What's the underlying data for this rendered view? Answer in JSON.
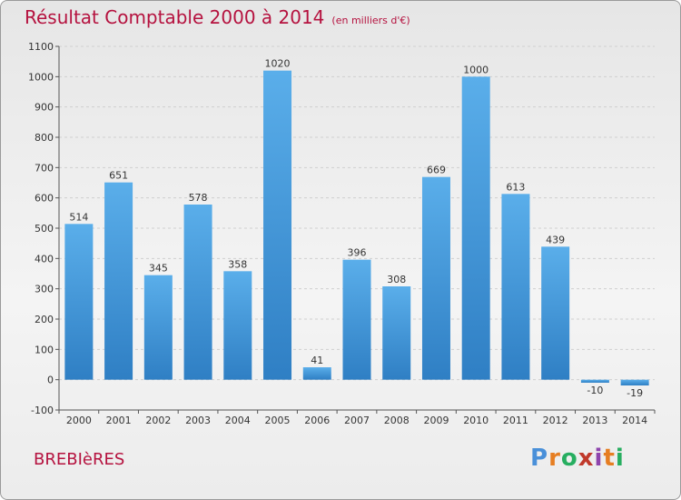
{
  "title": "Résultat Comptable 2000 à 2014",
  "subtitle": "(en milliers d'€)",
  "commune": "BREBIèRES",
  "brand": {
    "letters": [
      "P",
      "r",
      "o",
      "x",
      "i",
      "t",
      "i"
    ]
  },
  "colors": {
    "bar": "#3d8fd6",
    "title": "#b5123f"
  },
  "chart_data": {
    "type": "bar",
    "title": "Résultat Comptable 2000 à 2014",
    "subtitle": "(en milliers d'€)",
    "categories": [
      "2000",
      "2001",
      "2002",
      "2003",
      "2004",
      "2005",
      "2006",
      "2007",
      "2008",
      "2009",
      "2010",
      "2011",
      "2012",
      "2013",
      "2014"
    ],
    "values": [
      514,
      651,
      345,
      578,
      358,
      1020,
      41,
      396,
      308,
      669,
      1000,
      613,
      439,
      -10,
      -19
    ],
    "value_labels": [
      "514",
      "651",
      "345",
      "578",
      "358",
      "1020",
      "41",
      "396",
      "308",
      "669",
      "1000",
      "613",
      "439",
      "-10",
      "-19"
    ],
    "ylim": [
      -100,
      1100
    ],
    "yticks": [
      -100,
      0,
      100,
      200,
      300,
      400,
      500,
      600,
      700,
      800,
      900,
      1000,
      1100
    ],
    "ytick_labels": [
      "-100",
      "0",
      "100",
      "200",
      "300",
      "400",
      "500",
      "600",
      "700",
      "800",
      "900",
      "1000",
      "1100"
    ],
    "grid": true,
    "xlabel": "",
    "ylabel": ""
  }
}
